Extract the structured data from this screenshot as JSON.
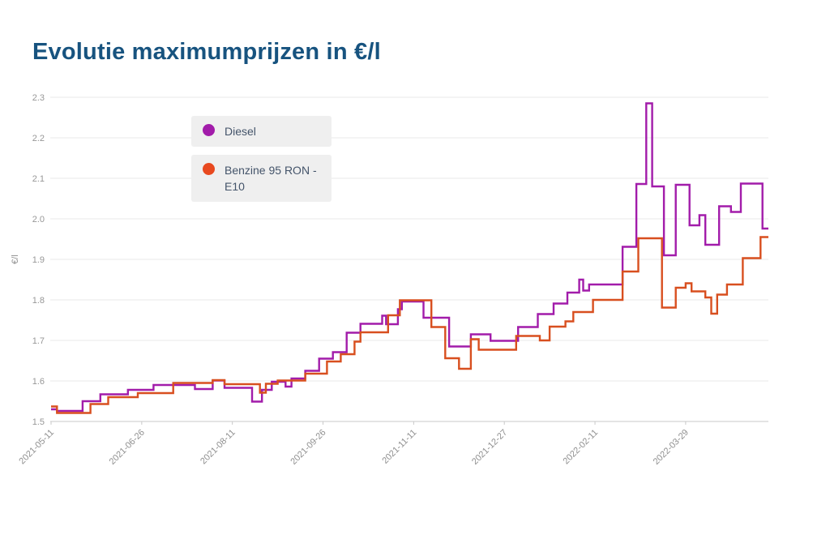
{
  "title": "Evolutie maximumprijzen in €/l",
  "title_color": "#17537f",
  "legend": {
    "items": [
      {
        "label": "Diesel",
        "color": "#a21caa"
      },
      {
        "label": "Benzine 95 RON - E10",
        "color": "#e8491f"
      }
    ]
  },
  "chart_data": {
    "type": "line",
    "subtype": "step-after",
    "title": "Evolutie maximumprijzen in €/l",
    "xlabel": "",
    "ylabel": "€/l",
    "ylim": [
      1.5,
      2.3
    ],
    "grid": "horizontal",
    "legend_position": "top-left-inside",
    "x_domain": [
      "2021-05-11",
      "2022-05-10"
    ],
    "xticks": [
      "2021-05-11",
      "2021-06-26",
      "2021-08-11",
      "2021-09-26",
      "2021-11-11",
      "2021-12-27",
      "2022-02-11",
      "2022-03-29"
    ],
    "yticks": [
      "1.5",
      "1.6",
      "1.7",
      "1.8",
      "1.9",
      "2.0",
      "2.1",
      "2.2",
      "2.3"
    ],
    "axis_color": "#c9c9c9",
    "grid_color": "#e9e9e9",
    "tick_label_color": "#979797",
    "series": [
      {
        "name": "Diesel",
        "color": "#a21caa",
        "points": [
          [
            "2021-05-11",
            1.53
          ],
          [
            "2021-05-14",
            1.526
          ],
          [
            "2021-05-27",
            1.55
          ],
          [
            "2021-06-05",
            1.567
          ],
          [
            "2021-06-19",
            1.578
          ],
          [
            "2021-07-02",
            1.59
          ],
          [
            "2021-07-23",
            1.58
          ],
          [
            "2021-08-01",
            1.601
          ],
          [
            "2021-08-07",
            1.583
          ],
          [
            "2021-08-21",
            1.549
          ],
          [
            "2021-08-26",
            1.578
          ],
          [
            "2021-08-31",
            1.598
          ],
          [
            "2021-09-07",
            1.586
          ],
          [
            "2021-09-10",
            1.606
          ],
          [
            "2021-09-17",
            1.625
          ],
          [
            "2021-09-24",
            1.655
          ],
          [
            "2021-10-01",
            1.671
          ],
          [
            "2021-10-08",
            1.719
          ],
          [
            "2021-10-15",
            1.741
          ],
          [
            "2021-10-26",
            1.761
          ],
          [
            "2021-10-28",
            1.74
          ],
          [
            "2021-11-03",
            1.777
          ],
          [
            "2021-11-05",
            1.796
          ],
          [
            "2021-11-16",
            1.756
          ],
          [
            "2021-11-29",
            1.685
          ],
          [
            "2021-12-10",
            1.715
          ],
          [
            "2021-12-20",
            1.699
          ],
          [
            "2022-01-03",
            1.733
          ],
          [
            "2022-01-13",
            1.765
          ],
          [
            "2022-01-21",
            1.791
          ],
          [
            "2022-01-28",
            1.818
          ],
          [
            "2022-02-03",
            1.85
          ],
          [
            "2022-02-05",
            1.823
          ],
          [
            "2022-02-08",
            1.838
          ],
          [
            "2022-02-25",
            1.931
          ],
          [
            "2022-03-04",
            2.086
          ],
          [
            "2022-03-09",
            2.285
          ],
          [
            "2022-03-12",
            2.08
          ],
          [
            "2022-03-18",
            1.91
          ],
          [
            "2022-03-24",
            2.084
          ],
          [
            "2022-03-31",
            1.984
          ],
          [
            "2022-04-05",
            2.009
          ],
          [
            "2022-04-08",
            1.936
          ],
          [
            "2022-04-15",
            2.031
          ],
          [
            "2022-04-21",
            2.017
          ],
          [
            "2022-04-26",
            2.087
          ],
          [
            "2022-05-07",
            1.976
          ]
        ]
      },
      {
        "name": "Benzine 95 RON - E10",
        "color": "#d84f1f",
        "points": [
          [
            "2021-05-11",
            1.537
          ],
          [
            "2021-05-14",
            1.521
          ],
          [
            "2021-05-31",
            1.543
          ],
          [
            "2021-06-09",
            1.56
          ],
          [
            "2021-06-24",
            1.57
          ],
          [
            "2021-07-12",
            1.595
          ],
          [
            "2021-08-01",
            1.602
          ],
          [
            "2021-08-07",
            1.592
          ],
          [
            "2021-08-25",
            1.571
          ],
          [
            "2021-08-28",
            1.593
          ],
          [
            "2021-09-03",
            1.601
          ],
          [
            "2021-09-17",
            1.618
          ],
          [
            "2021-09-28",
            1.648
          ],
          [
            "2021-10-05",
            1.666
          ],
          [
            "2021-10-12",
            1.697
          ],
          [
            "2021-10-15",
            1.72
          ],
          [
            "2021-10-29",
            1.762
          ],
          [
            "2021-11-04",
            1.799
          ],
          [
            "2021-11-20",
            1.733
          ],
          [
            "2021-11-27",
            1.656
          ],
          [
            "2021-12-04",
            1.63
          ],
          [
            "2021-12-10",
            1.703
          ],
          [
            "2021-12-14",
            1.677
          ],
          [
            "2022-01-02",
            1.711
          ],
          [
            "2022-01-14",
            1.7
          ],
          [
            "2022-01-19",
            1.734
          ],
          [
            "2022-01-27",
            1.747
          ],
          [
            "2022-01-31",
            1.77
          ],
          [
            "2022-02-10",
            1.8
          ],
          [
            "2022-02-25",
            1.87
          ],
          [
            "2022-03-05",
            1.952
          ],
          [
            "2022-03-17",
            1.781
          ],
          [
            "2022-03-24",
            1.83
          ],
          [
            "2022-03-29",
            1.841
          ],
          [
            "2022-04-01",
            1.821
          ],
          [
            "2022-04-08",
            1.806
          ],
          [
            "2022-04-11",
            1.766
          ],
          [
            "2022-04-14",
            1.813
          ],
          [
            "2022-04-19",
            1.838
          ],
          [
            "2022-04-27",
            1.903
          ],
          [
            "2022-05-06",
            1.955
          ]
        ]
      }
    ]
  }
}
